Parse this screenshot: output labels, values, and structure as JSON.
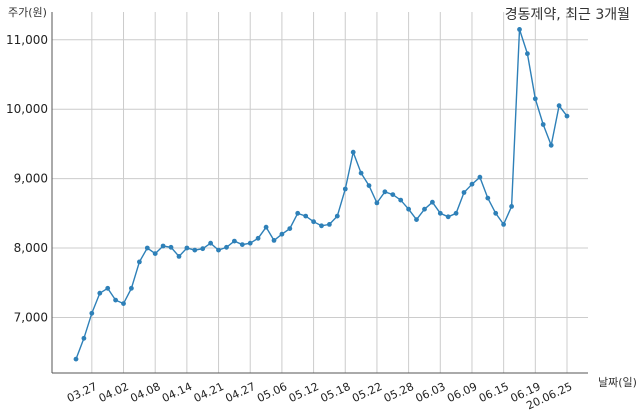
{
  "chart_data": {
    "type": "line",
    "title": "경동제약, 최근 3개월",
    "ylabel": "주가(원)",
    "xlabel": "날짜(일)",
    "ylim": [
      6200,
      11400
    ],
    "yticks": [
      7000,
      8000,
      9000,
      10000,
      11000
    ],
    "ytick_labels": [
      "7,000",
      "8,000",
      "9,000",
      "10,000",
      "11,000"
    ],
    "grid": true,
    "xtick_labels": [
      "03.27",
      "04.02",
      "04.08",
      "04.14",
      "04.21",
      "04.27",
      "05.06",
      "05.12",
      "05.18",
      "05.22",
      "05.28",
      "06.03",
      "06.09",
      "06.15",
      "06.19",
      "20.06.25"
    ],
    "xtick_index": [
      2,
      6,
      10,
      14,
      18,
      22,
      26,
      30,
      34,
      38,
      42,
      46,
      50,
      54,
      58,
      62
    ],
    "series": [
      {
        "color": "#2e80b8",
        "values": [
          6400,
          6700,
          7060,
          7350,
          7420,
          7250,
          7200,
          7420,
          7800,
          8000,
          7920,
          8030,
          8010,
          7880,
          8000,
          7970,
          7990,
          8070,
          7970,
          8010,
          8100,
          8050,
          8070,
          8140,
          8300,
          8110,
          8200,
          8280,
          8500,
          8460,
          8380,
          8320,
          8340,
          8460,
          8850,
          9380,
          9080,
          8900,
          8650,
          8810,
          8770,
          8690,
          8560,
          8410,
          8560,
          8660,
          8500,
          8450,
          8500,
          8800,
          8920,
          9020,
          8720,
          8500,
          8340,
          8600,
          11150,
          10800,
          10150,
          9780,
          9480,
          10050,
          9900
        ]
      }
    ]
  }
}
